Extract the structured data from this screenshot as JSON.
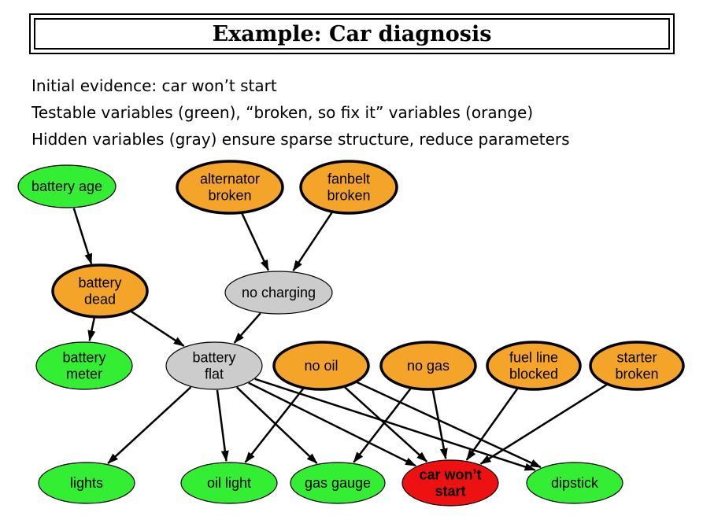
{
  "title": "Example: Car diagnosis",
  "bullets": [
    "Initial evidence: car won’t start",
    "Testable variables (green), “broken, so fix it” variables (orange)",
    "Hidden variables (gray) ensure sparse structure, reduce parameters"
  ],
  "colors": {
    "testable": "#33ee33",
    "fixable": "#f5a42a",
    "hidden": "#cccccc",
    "evidence": "#ee1111"
  },
  "nodes": {
    "battery_age": {
      "lines": [
        "battery age"
      ],
      "kind": "testable"
    },
    "alternator_broken": {
      "lines": [
        "alternator",
        "broken"
      ],
      "kind": "fixable"
    },
    "fanbelt_broken": {
      "lines": [
        "fanbelt",
        "broken"
      ],
      "kind": "fixable"
    },
    "battery_dead": {
      "lines": [
        "battery",
        "dead"
      ],
      "kind": "fixable"
    },
    "no_charging": {
      "lines": [
        "no charging"
      ],
      "kind": "hidden"
    },
    "battery_meter": {
      "lines": [
        "battery",
        "meter"
      ],
      "kind": "testable"
    },
    "battery_flat": {
      "lines": [
        "battery",
        "flat"
      ],
      "kind": "hidden"
    },
    "no_oil": {
      "lines": [
        "no oil"
      ],
      "kind": "fixable"
    },
    "no_gas": {
      "lines": [
        "no gas"
      ],
      "kind": "fixable"
    },
    "fuel_line_blocked": {
      "lines": [
        "fuel line",
        "blocked"
      ],
      "kind": "fixable"
    },
    "starter_broken": {
      "lines": [
        "starter",
        "broken"
      ],
      "kind": "fixable"
    },
    "lights": {
      "lines": [
        "lights"
      ],
      "kind": "testable"
    },
    "oil_light": {
      "lines": [
        "oil light"
      ],
      "kind": "testable"
    },
    "gas_gauge": {
      "lines": [
        "gas gauge"
      ],
      "kind": "testable"
    },
    "car_wont_start": {
      "lines": [
        "car won’t",
        "start"
      ],
      "kind": "evidence"
    },
    "dipstick": {
      "lines": [
        "dipstick"
      ],
      "kind": "testable"
    }
  },
  "edges": [
    [
      "battery_age",
      "battery_dead"
    ],
    [
      "alternator_broken",
      "no_charging"
    ],
    [
      "fanbelt_broken",
      "no_charging"
    ],
    [
      "battery_dead",
      "battery_meter"
    ],
    [
      "battery_dead",
      "battery_flat"
    ],
    [
      "no_charging",
      "battery_flat"
    ],
    [
      "battery_flat",
      "lights"
    ],
    [
      "battery_flat",
      "oil_light"
    ],
    [
      "battery_flat",
      "gas_gauge"
    ],
    [
      "battery_flat",
      "car_wont_start"
    ],
    [
      "battery_flat",
      "dipstick"
    ],
    [
      "no_oil",
      "oil_light"
    ],
    [
      "no_oil",
      "car_wont_start"
    ],
    [
      "no_oil",
      "dipstick"
    ],
    [
      "no_gas",
      "gas_gauge"
    ],
    [
      "no_gas",
      "car_wont_start"
    ],
    [
      "fuel_line_blocked",
      "car_wont_start"
    ],
    [
      "starter_broken",
      "car_wont_start"
    ]
  ]
}
